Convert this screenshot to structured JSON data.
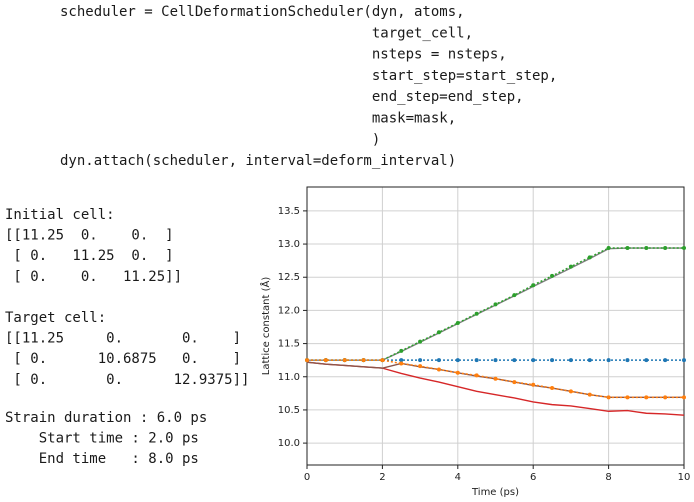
{
  "code": {
    "lines": [
      "scheduler = CellDeformationScheduler(dyn, atoms,",
      "                                     target_cell,",
      "                                     nsteps = nsteps,",
      "                                     start_step=start_step,",
      "                                     end_step=end_step,",
      "                                     mask=mask,",
      "                                     )",
      "dyn.attach(scheduler, interval=deform_interval)"
    ]
  },
  "output": {
    "blocks": [
      [
        "Initial cell:",
        "[[11.25  0.    0.  ]",
        " [ 0.   11.25  0.  ]",
        " [ 0.    0.   11.25]]"
      ],
      [
        "Target cell:",
        "[[11.25     0.       0.    ]",
        " [ 0.      10.6875   0.    ]",
        " [ 0.       0.      12.9375]]"
      ],
      [
        "Strain duration : 6.0 ps",
        "    Start time : 2.0 ps",
        "    End time   : 8.0 ps"
      ]
    ]
  },
  "chart_data": {
    "type": "line",
    "x_label": "Time (ps)",
    "y_label": "Lattice constant (Å)",
    "x": [
      0,
      0.5,
      1,
      1.5,
      2,
      2.5,
      3,
      3.5,
      4,
      4.5,
      5,
      5.5,
      6,
      6.5,
      7,
      7.5,
      8,
      8.5,
      9,
      9.5,
      10
    ],
    "xlim": [
      0,
      10
    ],
    "xticks": [
      0,
      2,
      4,
      6,
      8,
      10
    ],
    "ylim": [
      9.67,
      13.86
    ],
    "yticks": [
      {
        "value": 10,
        "label": "10.0"
      },
      10.5,
      {
        "value": 11,
        "label": "11.0"
      },
      11.5,
      {
        "value": 12,
        "label": "12.0"
      },
      12.5,
      {
        "value": 13,
        "label": "13.0"
      },
      13.5
    ],
    "grid": true,
    "series": [
      {
        "color": "#1f77b4",
        "style": "dotted",
        "values": [
          11.25,
          11.25,
          11.25,
          11.25,
          11.25,
          11.25,
          11.25,
          11.25,
          11.25,
          11.25,
          11.25,
          11.25,
          11.25,
          11.25,
          11.25,
          11.25,
          11.25,
          11.25,
          11.25,
          11.25,
          11.25
        ]
      },
      {
        "color": "#7f7f7f",
        "style": "solid",
        "values": [
          11.25,
          11.25,
          11.25,
          11.25,
          11.25,
          11.38,
          11.52,
          11.66,
          11.8,
          11.94,
          12.08,
          12.22,
          12.36,
          12.5,
          12.64,
          12.78,
          12.93,
          12.94,
          12.94,
          12.94,
          12.94
        ]
      },
      {
        "color": "#2ca02c",
        "style": "dotted",
        "values": [
          11.25,
          11.25,
          11.25,
          11.25,
          11.25,
          11.39,
          11.53,
          11.67,
          11.81,
          11.95,
          12.09,
          12.23,
          12.38,
          12.52,
          12.66,
          12.8,
          12.94,
          12.94,
          12.94,
          12.94,
          12.94
        ]
      },
      {
        "color": "#d62728",
        "style": "solid",
        "values": [
          11.22,
          11.19,
          11.17,
          11.15,
          11.13,
          11.05,
          10.98,
          10.92,
          10.85,
          10.78,
          10.73,
          10.68,
          10.62,
          10.58,
          10.56,
          10.52,
          10.48,
          10.49,
          10.45,
          10.44,
          10.42
        ]
      },
      {
        "color": "#8c564b",
        "style": "solid",
        "values": [
          11.22,
          11.19,
          11.17,
          11.15,
          11.13,
          11.2,
          11.15,
          11.11,
          11.06,
          11.01,
          10.97,
          10.92,
          10.87,
          10.83,
          10.78,
          10.73,
          10.69,
          10.69,
          10.69,
          10.69,
          10.69
        ]
      },
      {
        "color": "#ff7f0e",
        "style": "dotted",
        "values": [
          11.25,
          11.25,
          11.25,
          11.25,
          11.25,
          11.2,
          11.16,
          11.11,
          11.06,
          11.02,
          10.97,
          10.92,
          10.88,
          10.83,
          10.78,
          10.73,
          10.69,
          10.69,
          10.69,
          10.69,
          10.69
        ]
      }
    ]
  }
}
